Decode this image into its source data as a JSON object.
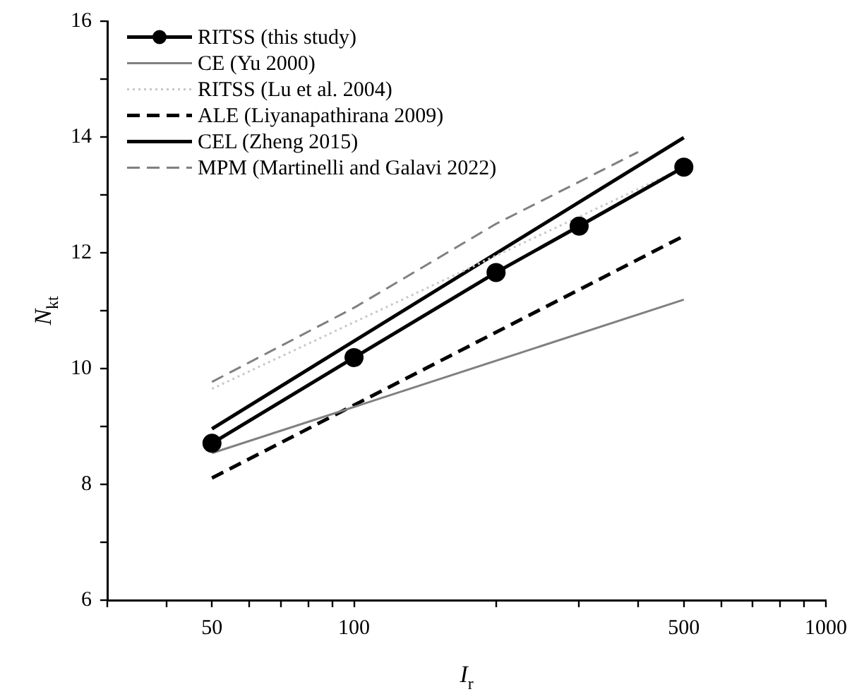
{
  "chart_data": {
    "type": "line",
    "xlabel": "I$_{r}$",
    "ylabel": "N$_{kt}$",
    "log": "x",
    "xlim": [
      30,
      1000
    ],
    "ylim": [
      6,
      16
    ],
    "xticks": [
      {
        "value": 30,
        "label": null
      },
      {
        "value": 40,
        "label": null
      },
      50,
      {
        "value": 60,
        "label": null
      },
      {
        "value": 70,
        "label": null
      },
      {
        "value": 80,
        "label": null
      },
      {
        "value": 90,
        "label": null
      },
      100,
      {
        "value": 200,
        "label": null
      },
      {
        "value": 300,
        "label": null
      },
      {
        "value": 400,
        "label": null
      },
      500,
      {
        "value": 600,
        "label": null
      },
      {
        "value": 700,
        "label": null
      },
      {
        "value": 800,
        "label": null
      },
      {
        "value": 900,
        "label": null
      },
      1000
    ],
    "yticks": [
      6,
      {
        "value": 7,
        "label": null
      },
      8,
      {
        "value": 9,
        "label": null
      },
      10,
      {
        "value": 11,
        "label": null
      },
      12,
      {
        "value": 13,
        "label": null
      },
      14,
      {
        "value": 15,
        "label": null
      },
      16
    ],
    "grid": false,
    "legend": "top left",
    "series": [
      {
        "name": "RITSS (this study)",
        "color": "#000000",
        "marker": "circle",
        "line_style": "solid",
        "x": [
          50,
          100,
          200,
          300,
          500
        ],
        "values": [
          8.71,
          10.19,
          11.66,
          12.46,
          13.48
        ]
      },
      {
        "name": "CE (Yu 2000)",
        "color": "#808080",
        "marker": "none",
        "line_style": "solid",
        "x": [
          50,
          500
        ],
        "values": [
          8.54,
          11.19
        ]
      },
      {
        "name": "RITSS (Lu et al. 2004)",
        "color": "#c8c8c8",
        "marker": "none",
        "line_style": "dotted",
        "x": [
          50,
          500
        ],
        "values": [
          9.65,
          13.47
        ]
      },
      {
        "name": "ALE (Liyanapathirana 2009)",
        "color": "#000000",
        "marker": "none",
        "line_style": "dashed",
        "x": [
          50,
          500
        ],
        "values": [
          8.11,
          12.29
        ]
      },
      {
        "name": "CEL (Zheng 2015)",
        "color": "#000000",
        "marker": "none",
        "line_style": "solid",
        "x": [
          50,
          500
        ],
        "values": [
          8.96,
          13.99
        ]
      },
      {
        "name": "MPM (Martinelli and Galavi 2022)",
        "color": "#808080",
        "marker": "none",
        "line_style": "dashed",
        "x": [
          50,
          100,
          200,
          400
        ],
        "values": [
          9.77,
          11.05,
          12.5,
          13.74
        ]
      }
    ]
  }
}
